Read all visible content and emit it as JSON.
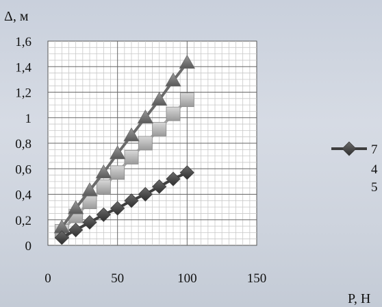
{
  "chart_data": {
    "type": "line",
    "title": "",
    "xlabel": "P, Н",
    "ylabel": "Δ, м",
    "xlim": [
      0,
      150
    ],
    "ylim": [
      0,
      1.6
    ],
    "x_ticks": [
      "0",
      "50",
      "100",
      "150"
    ],
    "y_ticks": [
      "0",
      "0,2",
      "0,4",
      "0,6",
      "0,8",
      "1",
      "1,2",
      "1,4",
      "1,6"
    ],
    "grid": "on",
    "legend_placement": "right",
    "series": [
      {
        "name": "7",
        "marker": "diamond",
        "color": "#3e3e3e",
        "x": [
          10,
          20,
          30,
          40,
          50,
          60,
          70,
          80,
          90,
          100
        ],
        "y": [
          0.06,
          0.12,
          0.18,
          0.24,
          0.29,
          0.35,
          0.4,
          0.46,
          0.52,
          0.57
        ]
      },
      {
        "name": "4",
        "marker": "triangle",
        "color": "#6a6a6a",
        "x": [
          10,
          20,
          30,
          40,
          50,
          60,
          70,
          80,
          90,
          100
        ],
        "y": [
          0.14,
          0.29,
          0.43,
          0.57,
          0.72,
          0.86,
          1.0,
          1.14,
          1.29,
          1.43
        ]
      },
      {
        "name": "5",
        "marker": "square",
        "color": "#a8a8a8",
        "x": [
          10,
          20,
          30,
          40,
          50,
          60,
          70,
          80,
          90,
          100
        ],
        "y": [
          0.11,
          0.23,
          0.34,
          0.46,
          0.57,
          0.69,
          0.8,
          0.91,
          1.03,
          1.14
        ]
      }
    ]
  }
}
